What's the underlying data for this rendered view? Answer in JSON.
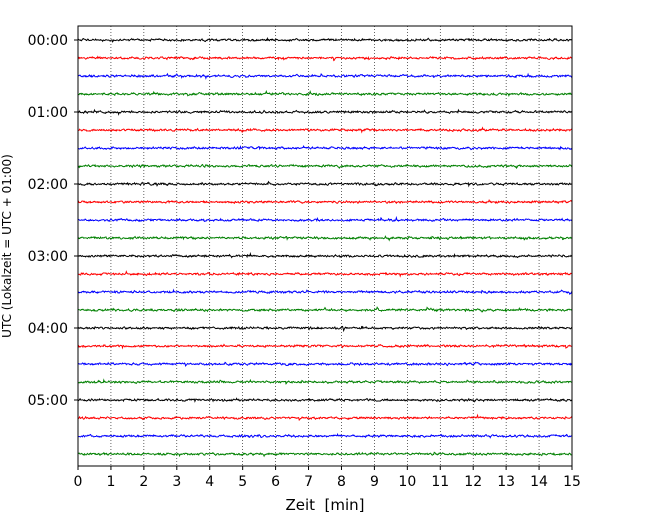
{
  "chart_data": {
    "type": "line",
    "title": "",
    "xlabel": "Zeit  [min]",
    "ylabel": "UTC (Lokalzeit = UTC + 01:00)",
    "xlim": [
      0,
      15
    ],
    "x_ticks": [
      "0",
      "1",
      "2",
      "3",
      "4",
      "5",
      "6",
      "7",
      "8",
      "9",
      "10",
      "11",
      "12",
      "13",
      "14",
      "15"
    ],
    "y_tick_labels": [
      "00:00",
      "01:00",
      "02:00",
      "03:00",
      "04:00",
      "05:00"
    ],
    "grid": "vertical dotted lines at each minute",
    "trace_interval_minutes": 15,
    "trace_start_times": [
      "00:00",
      "00:15",
      "00:30",
      "00:45",
      "01:00",
      "01:15",
      "01:30",
      "01:45",
      "02:00",
      "02:15",
      "02:30",
      "02:45",
      "03:00",
      "03:15",
      "03:30",
      "03:45",
      "04:00",
      "04:15",
      "04:30",
      "04:45",
      "05:00",
      "05:15",
      "05:30",
      "05:45"
    ],
    "trace_color_cycle": [
      "#000000",
      "#ff0000",
      "#0000ff",
      "#008000"
    ],
    "series_description": "24 noise-like seismogram traces"
  }
}
